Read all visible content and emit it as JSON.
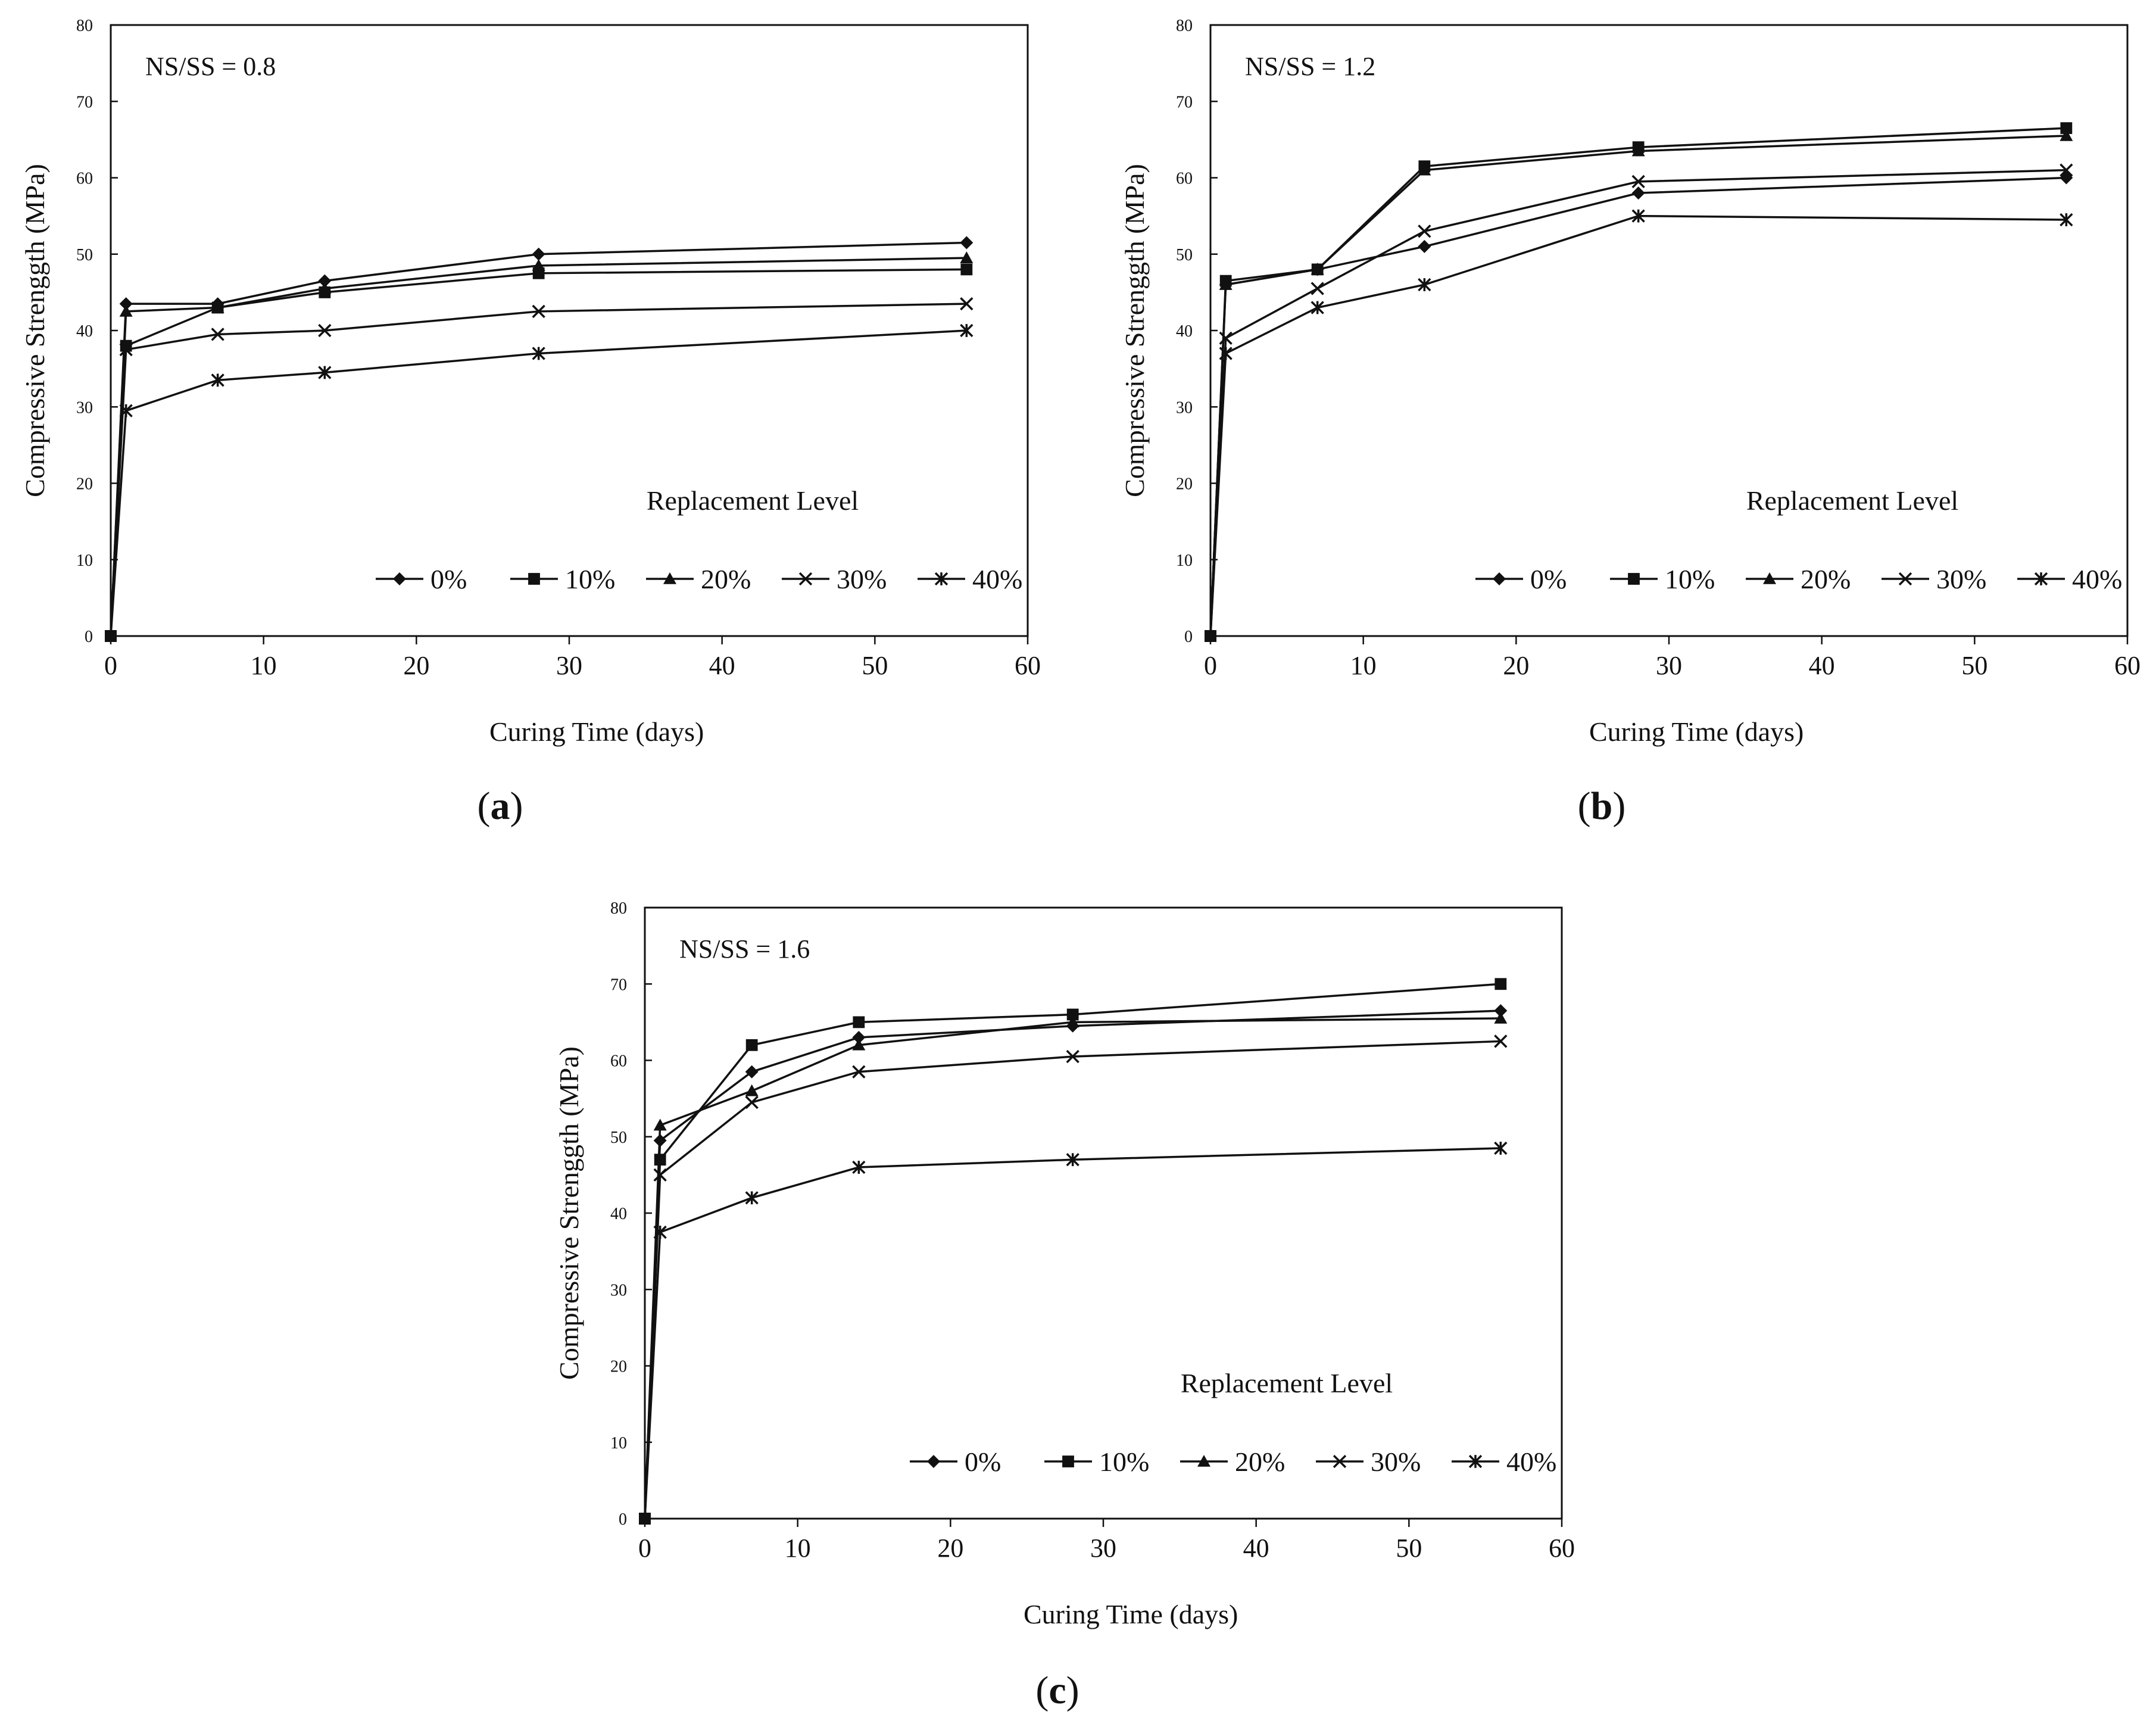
{
  "chart_data": [
    {
      "type": "line",
      "caption_letter": "a",
      "annotation": "NS/SS = 0.8",
      "legend_title": "Replacement Level",
      "xlabel": "Curing Time (days)",
      "ylabel": "Compressive Strenggth (MPa)",
      "xlim": [
        0,
        60
      ],
      "ylim": [
        0,
        80
      ],
      "xticks": [
        0,
        10,
        20,
        30,
        40,
        50,
        60
      ],
      "yticks": [
        0,
        10,
        20,
        30,
        40,
        50,
        60,
        70,
        80
      ],
      "x": [
        0,
        1,
        7,
        14,
        28,
        56
      ],
      "series": [
        {
          "name": "0%",
          "marker": "diamond",
          "values": [
            0,
            43.5,
            43.5,
            46.5,
            50,
            51.5
          ]
        },
        {
          "name": "10%",
          "marker": "square",
          "values": [
            0,
            38,
            43,
            45,
            47.5,
            48
          ]
        },
        {
          "name": "20%",
          "marker": "triangle",
          "values": [
            0,
            42.5,
            43,
            45.5,
            48.5,
            49.5
          ]
        },
        {
          "name": "30%",
          "marker": "x",
          "values": [
            0,
            37.5,
            39.5,
            40,
            42.5,
            43.5
          ]
        },
        {
          "name": "40%",
          "marker": "star",
          "values": [
            0,
            29.5,
            33.5,
            34.5,
            37,
            40
          ]
        }
      ]
    },
    {
      "type": "line",
      "caption_letter": "b",
      "annotation": "NS/SS = 1.2",
      "legend_title": "Replacement Level",
      "xlabel": "Curing Time (days)",
      "ylabel": "Compressive Strenggth (MPa)",
      "xlim": [
        0,
        60
      ],
      "ylim": [
        0,
        80
      ],
      "xticks": [
        0,
        10,
        20,
        30,
        40,
        50,
        60
      ],
      "yticks": [
        0,
        10,
        20,
        30,
        40,
        50,
        60,
        70,
        80
      ],
      "x": [
        0,
        1,
        7,
        14,
        28,
        56
      ],
      "series": [
        {
          "name": "0%",
          "marker": "diamond",
          "values": [
            0,
            46,
            48,
            51,
            58,
            60
          ]
        },
        {
          "name": "10%",
          "marker": "square",
          "values": [
            0,
            46.5,
            48,
            61.5,
            64,
            66.5
          ]
        },
        {
          "name": "20%",
          "marker": "triangle",
          "values": [
            0,
            46,
            48,
            61,
            63.5,
            65.5
          ]
        },
        {
          "name": "30%",
          "marker": "x",
          "values": [
            0,
            39,
            45.5,
            53,
            59.5,
            61
          ]
        },
        {
          "name": "40%",
          "marker": "star",
          "values": [
            0,
            37,
            43,
            46,
            55,
            54.5
          ]
        }
      ]
    },
    {
      "type": "line",
      "caption_letter": "c",
      "annotation": "NS/SS = 1.6",
      "legend_title": "Replacement Level",
      "xlabel": "Curing Time (days)",
      "ylabel": "Compressive Strenggth (MPa)",
      "xlim": [
        0,
        60
      ],
      "ylim": [
        0,
        80
      ],
      "xticks": [
        0,
        10,
        20,
        30,
        40,
        50,
        60
      ],
      "yticks": [
        0,
        10,
        20,
        30,
        40,
        50,
        60,
        70,
        80
      ],
      "x": [
        0,
        1,
        7,
        14,
        28,
        56
      ],
      "series": [
        {
          "name": "0%",
          "marker": "diamond",
          "values": [
            0,
            49.5,
            58.5,
            63,
            64.5,
            66.5
          ]
        },
        {
          "name": "10%",
          "marker": "square",
          "values": [
            0,
            47,
            62,
            65,
            66,
            70
          ]
        },
        {
          "name": "20%",
          "marker": "triangle",
          "values": [
            0,
            51.5,
            56,
            62,
            65,
            65.5
          ]
        },
        {
          "name": "30%",
          "marker": "x",
          "values": [
            0,
            45,
            54.5,
            58.5,
            60.5,
            62.5
          ]
        },
        {
          "name": "40%",
          "marker": "star",
          "values": [
            0,
            37.5,
            42,
            46,
            47,
            48.5
          ]
        }
      ]
    }
  ]
}
